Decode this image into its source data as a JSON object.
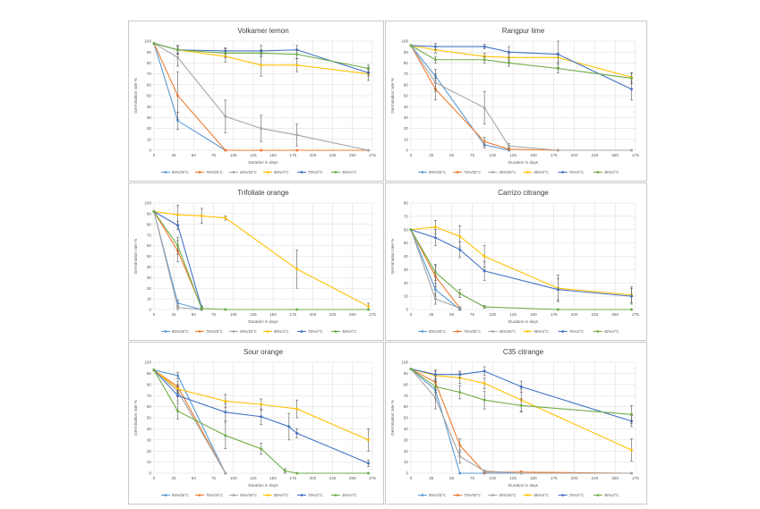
{
  "legend_labels": [
    "85%/25°C",
    "75%/25°C",
    "45%/25°C",
    "85%/4°C",
    "75%/4°C",
    "45%/4°C"
  ],
  "series_colors": [
    "#5b9bd5",
    "#ed7d31",
    "#a5a5a5",
    "#ffc000",
    "#4472c4",
    "#70ad47"
  ],
  "chart_data": [
    {
      "type": "line",
      "title": "Volkamer lemon",
      "xlabel": "Duration in days",
      "ylabel": "Germination rate %",
      "xlim": [
        0,
        275
      ],
      "ylim": [
        0,
        100
      ],
      "yticks": [
        0,
        10,
        20,
        30,
        40,
        50,
        60,
        70,
        80,
        90,
        100
      ],
      "xticks": [
        0,
        25,
        50,
        75,
        100,
        125,
        150,
        175,
        200,
        225,
        250,
        275
      ],
      "grid": true,
      "legend": "bottom",
      "series": [
        {
          "name": "85%/25°C",
          "x": [
            0,
            30,
            90
          ],
          "y": [
            98,
            27,
            0
          ],
          "err": [
            0,
            8,
            0
          ]
        },
        {
          "name": "75%/25°C",
          "x": [
            0,
            30,
            90,
            135,
            180,
            270
          ],
          "y": [
            98,
            50,
            0,
            0,
            0,
            0
          ],
          "err": [
            0,
            22,
            0,
            0,
            0,
            0
          ]
        },
        {
          "name": "45%/25°C",
          "x": [
            0,
            30,
            90,
            135,
            180,
            270
          ],
          "y": [
            98,
            85,
            31,
            20,
            14,
            0
          ],
          "err": [
            0,
            8,
            15,
            12,
            10,
            0
          ]
        },
        {
          "name": "85%/4°C",
          "x": [
            0,
            30,
            90,
            135,
            180,
            270
          ],
          "y": [
            98,
            92,
            86,
            78,
            78,
            70
          ],
          "err": [
            0,
            4,
            5,
            10,
            6,
            6
          ]
        },
        {
          "name": "75%/4°C",
          "x": [
            0,
            30,
            90,
            135,
            180,
            270
          ],
          "y": [
            98,
            92,
            91,
            91,
            92,
            71
          ],
          "err": [
            0,
            4,
            3,
            5,
            4,
            3
          ]
        },
        {
          "name": "45%/4°C",
          "x": [
            0,
            30,
            90,
            135,
            180,
            270
          ],
          "y": [
            98,
            92,
            89,
            89,
            88,
            75
          ],
          "err": [
            0,
            3,
            4,
            3,
            4,
            3
          ]
        }
      ]
    },
    {
      "type": "line",
      "title": "Rangpur lime",
      "xlabel": "Duration in days",
      "ylabel": "Germination rate %",
      "xlim": [
        0,
        275
      ],
      "ylim": [
        0,
        100
      ],
      "yticks": [
        0,
        10,
        20,
        30,
        40,
        50,
        60,
        70,
        80,
        90,
        100
      ],
      "xticks": [
        0,
        25,
        50,
        75,
        100,
        125,
        150,
        175,
        200,
        225,
        250,
        275
      ],
      "grid": true,
      "legend": "bottom",
      "series": [
        {
          "name": "85%/25°C",
          "x": [
            0,
            30,
            90,
            120
          ],
          "y": [
            96,
            68,
            5,
            0
          ],
          "err": [
            0,
            6,
            3,
            0
          ]
        },
        {
          "name": "75%/25°C",
          "x": [
            0,
            30,
            90,
            120,
            180
          ],
          "y": [
            96,
            56,
            8,
            1,
            0
          ],
          "err": [
            0,
            10,
            4,
            1,
            0
          ]
        },
        {
          "name": "45%/25°C",
          "x": [
            0,
            30,
            90,
            120,
            180,
            270
          ],
          "y": [
            96,
            62,
            39,
            4,
            0,
            0
          ],
          "err": [
            0,
            8,
            15,
            2,
            0,
            0
          ]
        },
        {
          "name": "85%/4°C",
          "x": [
            0,
            30,
            90,
            120,
            180,
            270
          ],
          "y": [
            96,
            92,
            86,
            85,
            85,
            67
          ],
          "err": [
            0,
            3,
            3,
            4,
            4,
            4
          ]
        },
        {
          "name": "75%/4°C",
          "x": [
            0,
            30,
            90,
            120,
            180,
            270
          ],
          "y": [
            96,
            95,
            95,
            90,
            88,
            56
          ],
          "err": [
            0,
            3,
            2,
            5,
            12,
            10
          ]
        },
        {
          "name": "45%/4°C",
          "x": [
            0,
            30,
            90,
            120,
            180,
            270
          ],
          "y": [
            96,
            83,
            83,
            80,
            75,
            66
          ],
          "err": [
            0,
            3,
            3,
            3,
            4,
            5
          ]
        }
      ]
    },
    {
      "type": "line",
      "title": "Trifoliate orange",
      "xlabel": "Duration in days",
      "ylabel": "Germination rate %",
      "xlim": [
        0,
        275
      ],
      "ylim": [
        0,
        100
      ],
      "yticks": [
        0,
        10,
        20,
        30,
        40,
        50,
        60,
        70,
        80,
        90,
        100
      ],
      "xticks": [
        0,
        25,
        50,
        75,
        100,
        125,
        150,
        175,
        200,
        225,
        250,
        275
      ],
      "grid": true,
      "legend": "bottom",
      "series": [
        {
          "name": "85%/25°C",
          "x": [
            0,
            30,
            60
          ],
          "y": [
            92,
            6,
            0
          ],
          "err": [
            0,
            3,
            0
          ]
        },
        {
          "name": "75%/25°C",
          "x": [
            0,
            30,
            60
          ],
          "y": [
            92,
            55,
            2
          ],
          "err": [
            0,
            10,
            2
          ]
        },
        {
          "name": "45%/25°C",
          "x": [
            0,
            30,
            60
          ],
          "y": [
            92,
            2,
            0
          ],
          "err": [
            0,
            2,
            0
          ]
        },
        {
          "name": "85%/4°C",
          "x": [
            0,
            30,
            60,
            90,
            180,
            270
          ],
          "y": [
            92,
            89,
            88,
            86,
            38,
            3
          ],
          "err": [
            0,
            9,
            7,
            2,
            18,
            3
          ]
        },
        {
          "name": "75%/4°C",
          "x": [
            0,
            30,
            60
          ],
          "y": [
            92,
            79,
            2
          ],
          "err": [
            0,
            4,
            2
          ]
        },
        {
          "name": "45%/4°C",
          "x": [
            0,
            30,
            60,
            90,
            180,
            270
          ],
          "y": [
            92,
            60,
            1,
            0,
            0,
            0
          ],
          "err": [
            0,
            8,
            1,
            0,
            0,
            0
          ]
        }
      ]
    },
    {
      "type": "line",
      "title": "Carrizo citrange",
      "xlabel": "Duration in days",
      "ylabel": "Germination rate %",
      "xlim": [
        0,
        275
      ],
      "ylim": [
        0,
        80
      ],
      "yticks": [
        0,
        10,
        20,
        30,
        40,
        50,
        60,
        70,
        80
      ],
      "xticks": [
        0,
        25,
        50,
        75,
        100,
        125,
        150,
        175,
        200,
        225,
        250,
        275
      ],
      "grid": true,
      "legend": "bottom",
      "series": [
        {
          "name": "85%/25°C",
          "x": [
            0,
            30,
            60
          ],
          "y": [
            60,
            15,
            0
          ],
          "err": [
            0,
            5,
            0
          ]
        },
        {
          "name": "75%/25°C",
          "x": [
            0,
            30,
            60
          ],
          "y": [
            60,
            25,
            1
          ],
          "err": [
            0,
            8,
            1
          ]
        },
        {
          "name": "45%/25°C",
          "x": [
            0,
            30,
            60
          ],
          "y": [
            60,
            8,
            1
          ],
          "err": [
            0,
            4,
            1
          ]
        },
        {
          "name": "85%/4°C",
          "x": [
            0,
            30,
            60,
            90,
            180,
            270
          ],
          "y": [
            60,
            62,
            55,
            40,
            16,
            11
          ],
          "err": [
            0,
            5,
            8,
            8,
            10,
            6
          ]
        },
        {
          "name": "75%/4°C",
          "x": [
            0,
            30,
            60,
            90,
            180,
            270
          ],
          "y": [
            60,
            54,
            45,
            29,
            15,
            10
          ],
          "err": [
            0,
            6,
            6,
            7,
            8,
            6
          ]
        },
        {
          "name": "45%/4°C",
          "x": [
            0,
            30,
            60,
            90,
            180,
            270
          ],
          "y": [
            60,
            28,
            12,
            2,
            0,
            0
          ],
          "err": [
            0,
            6,
            3,
            1,
            0,
            0
          ]
        }
      ]
    },
    {
      "type": "line",
      "title": "Sour orange",
      "xlabel": "Duration in days",
      "ylabel": "Germination rate %",
      "xlim": [
        0,
        275
      ],
      "ylim": [
        0,
        100
      ],
      "yticks": [
        0,
        10,
        20,
        30,
        40,
        50,
        60,
        70,
        80,
        90,
        100
      ],
      "xticks": [
        0,
        25,
        50,
        75,
        100,
        125,
        150,
        175,
        200,
        225,
        250,
        275
      ],
      "grid": true,
      "legend": "bottom",
      "series": [
        {
          "name": "85%/25°C",
          "x": [
            0,
            30,
            90
          ],
          "y": [
            93,
            88,
            0
          ],
          "err": [
            0,
            3,
            0
          ]
        },
        {
          "name": "75%/25°C",
          "x": [
            0,
            30,
            90
          ],
          "y": [
            93,
            78,
            0
          ],
          "err": [
            0,
            5,
            0
          ]
        },
        {
          "name": "45%/25°C",
          "x": [
            0,
            30,
            90
          ],
          "y": [
            93,
            74,
            0
          ],
          "err": [
            0,
            5,
            0
          ]
        },
        {
          "name": "85%/4°C",
          "x": [
            0,
            30,
            90,
            135,
            180,
            270
          ],
          "y": [
            93,
            76,
            65,
            62,
            58,
            30
          ],
          "err": [
            0,
            4,
            6,
            5,
            8,
            10
          ]
        },
        {
          "name": "75%/4°C",
          "x": [
            0,
            30,
            90,
            135,
            170,
            180,
            270
          ],
          "y": [
            93,
            70,
            55,
            51,
            42,
            36,
            9
          ],
          "err": [
            0,
            5,
            8,
            7,
            12,
            4,
            3
          ]
        },
        {
          "name": "45%/4°C",
          "x": [
            0,
            30,
            90,
            135,
            165,
            180,
            270
          ],
          "y": [
            93,
            56,
            34,
            22,
            2,
            0,
            0
          ],
          "err": [
            0,
            7,
            12,
            5,
            2,
            0,
            0
          ]
        }
      ]
    },
    {
      "type": "line",
      "title": "C35 citrange",
      "xlabel": "Duration in days",
      "ylabel": "Germination rate %",
      "xlim": [
        0,
        275
      ],
      "ylim": [
        0,
        100
      ],
      "yticks": [
        0,
        10,
        20,
        30,
        40,
        50,
        60,
        70,
        80,
        90,
        100
      ],
      "xticks": [
        0,
        25,
        50,
        75,
        100,
        125,
        150,
        175,
        200,
        225,
        250,
        275
      ],
      "grid": true,
      "legend": "bottom",
      "series": [
        {
          "name": "85%/25°C",
          "x": [
            0,
            30,
            60,
            90,
            135,
            270
          ],
          "y": [
            94,
            75,
            0,
            0,
            0,
            0
          ],
          "err": [
            0,
            8,
            0,
            0,
            0,
            0
          ]
        },
        {
          "name": "75%/25°C",
          "x": [
            0,
            30,
            60,
            90,
            135,
            270
          ],
          "y": [
            94,
            82,
            25,
            1,
            1,
            0
          ],
          "err": [
            0,
            5,
            6,
            1,
            1,
            0
          ]
        },
        {
          "name": "45%/25°C",
          "x": [
            0,
            30,
            60,
            90,
            135,
            270
          ],
          "y": [
            94,
            68,
            15,
            2,
            0,
            0
          ],
          "err": [
            0,
            10,
            6,
            1,
            0,
            0
          ]
        },
        {
          "name": "85%/4°C",
          "x": [
            0,
            30,
            60,
            90,
            135,
            270
          ],
          "y": [
            94,
            88,
            86,
            81,
            66,
            21
          ],
          "err": [
            0,
            4,
            5,
            5,
            10,
            10
          ]
        },
        {
          "name": "75%/4°C",
          "x": [
            0,
            30,
            60,
            90,
            135,
            270
          ],
          "y": [
            94,
            89,
            89,
            92,
            78,
            47
          ],
          "err": [
            0,
            4,
            3,
            4,
            5,
            5
          ]
        },
        {
          "name": "45%/4°C",
          "x": [
            0,
            30,
            60,
            90,
            135,
            270
          ],
          "y": [
            94,
            78,
            73,
            66,
            61,
            53
          ],
          "err": [
            0,
            5,
            6,
            8,
            6,
            8
          ]
        }
      ]
    }
  ]
}
